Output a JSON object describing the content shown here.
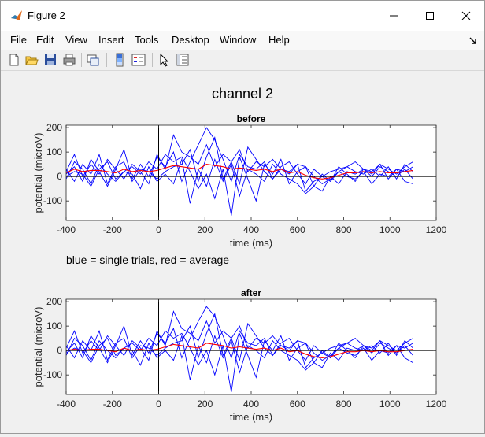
{
  "window": {
    "title": "Figure 2"
  },
  "menu": [
    "File",
    "Edit",
    "View",
    "Insert",
    "Tools",
    "Desktop",
    "Window",
    "Help"
  ],
  "toolbar": [
    {
      "icon": "new-figure-icon"
    },
    {
      "icon": "open-file-icon"
    },
    {
      "icon": "save-icon"
    },
    {
      "icon": "print-icon"
    },
    {
      "icon": "link-plot-icon"
    },
    {
      "icon": "insert-colorbar-icon"
    },
    {
      "icon": "insert-legend-icon"
    },
    {
      "icon": "edit-plot-arrow-icon"
    },
    {
      "icon": "property-inspector-icon"
    }
  ],
  "figure": {
    "suptitle": "channel 2",
    "note": "blue = single trials, red = average"
  },
  "colors": {
    "single_trial": "#0000ff",
    "average": "#ff0000",
    "axis": "#000000"
  },
  "chart_data": [
    {
      "type": "line",
      "title": "before",
      "xlabel": "time (ms)",
      "ylabel": "potential (microV)",
      "xlim": [
        -400,
        1200
      ],
      "ylim": [
        -180,
        210
      ],
      "xticks": [
        -400,
        -200,
        0,
        200,
        400,
        600,
        800,
        1000,
        1200
      ],
      "yticks": [
        -100,
        0,
        100,
        200
      ],
      "x_range_of_data": [
        -400,
        1100
      ],
      "series": [
        {
          "values": [
            10,
            40,
            -20,
            70,
            20,
            -40,
            30,
            110,
            -10,
            50,
            0,
            80,
            40,
            100,
            -20,
            60,
            130,
            200,
            150,
            70,
            -20,
            90,
            40,
            30,
            60,
            -10,
            30,
            20,
            50,
            -60,
            -20,
            0,
            20,
            30,
            40,
            20,
            10,
            30,
            0,
            40,
            -10,
            50,
            20
          ]
        },
        {
          "values": [
            -10,
            60,
            30,
            -30,
            50,
            10,
            -20,
            20,
            40,
            10,
            60,
            30,
            90,
            60,
            80,
            20,
            -50,
            10,
            -90,
            30,
            -160,
            80,
            -10,
            -100,
            50,
            10,
            70,
            -30,
            20,
            40,
            -40,
            -60,
            0,
            -30,
            20,
            10,
            30,
            0,
            40,
            20,
            0,
            30,
            -10
          ]
        },
        {
          "values": [
            30,
            -20,
            50,
            10,
            90,
            -30,
            40,
            60,
            -20,
            30,
            20,
            -10,
            20,
            40,
            50,
            110,
            -20,
            80,
            160,
            -10,
            60,
            -30,
            120,
            70,
            20,
            -10,
            40,
            60,
            10,
            -30,
            30,
            0,
            -20,
            40,
            10,
            -20,
            30,
            10,
            50,
            -10,
            30,
            20,
            40
          ]
        },
        {
          "values": [
            0,
            20,
            10,
            -40,
            30,
            60,
            -10,
            20,
            10,
            -50,
            40,
            -20,
            10,
            -30,
            70,
            -110,
            30,
            -40,
            70,
            -20,
            50,
            -80,
            30,
            10,
            -20,
            50,
            10,
            -10,
            -30,
            -70,
            -40,
            10,
            -20,
            20,
            0,
            -10,
            20,
            -30,
            10,
            0,
            30,
            -20,
            -30
          ]
        },
        {
          "values": [
            20,
            90,
            0,
            50,
            10,
            70,
            30,
            -10,
            50,
            20,
            -30,
            90,
            30,
            170,
            100,
            80,
            50,
            130,
            40,
            90,
            60,
            110,
            20,
            60,
            40,
            70,
            30,
            10,
            50,
            40,
            0,
            -30,
            -10,
            20,
            40,
            60,
            30,
            20,
            50,
            30,
            10,
            40,
            60
          ]
        }
      ],
      "average": [
        15,
        30,
        20,
        25,
        25,
        20,
        15,
        30,
        20,
        25,
        20,
        25,
        35,
        45,
        40,
        35,
        30,
        50,
        45,
        40,
        30,
        35,
        30,
        25,
        30,
        20,
        30,
        15,
        20,
        5,
        -5,
        -10,
        -5,
        5,
        15,
        15,
        20,
        15,
        20,
        15,
        15,
        20,
        25
      ]
    },
    {
      "type": "line",
      "title": "after",
      "xlabel": "time (ms)",
      "ylabel": "potential (microV)",
      "xlim": [
        -400,
        1200
      ],
      "ylim": [
        -180,
        210
      ],
      "xticks": [
        -400,
        -200,
        0,
        200,
        400,
        600,
        800,
        1000,
        1200
      ],
      "yticks": [
        -100,
        0,
        100,
        200
      ],
      "x_range_of_data": [
        -400,
        1100
      ],
      "series": [
        {
          "values": [
            -5,
            30,
            -30,
            60,
            10,
            -50,
            20,
            100,
            -20,
            40,
            -10,
            70,
            30,
            90,
            -30,
            50,
            120,
            180,
            140,
            60,
            -30,
            80,
            30,
            20,
            50,
            -20,
            20,
            10,
            40,
            -70,
            -30,
            -10,
            10,
            20,
            30,
            10,
            0,
            20,
            -10,
            30,
            -20,
            40,
            10
          ]
        },
        {
          "values": [
            -20,
            50,
            20,
            -40,
            40,
            0,
            -30,
            10,
            30,
            0,
            50,
            20,
            80,
            50,
            70,
            10,
            -60,
            0,
            -100,
            20,
            -170,
            70,
            -20,
            -110,
            40,
            0,
            60,
            -40,
            10,
            30,
            -50,
            -70,
            -10,
            -40,
            10,
            0,
            20,
            -10,
            30,
            10,
            -10,
            20,
            -20
          ]
        },
        {
          "values": [
            20,
            -30,
            40,
            0,
            80,
            -40,
            30,
            50,
            -30,
            20,
            10,
            -20,
            10,
            30,
            40,
            100,
            -30,
            70,
            150,
            -20,
            50,
            -40,
            110,
            60,
            10,
            -20,
            30,
            50,
            0,
            -40,
            20,
            -10,
            -30,
            30,
            0,
            -30,
            20,
            0,
            40,
            -20,
            20,
            10,
            30
          ]
        },
        {
          "values": [
            -10,
            10,
            0,
            -50,
            20,
            50,
            -20,
            10,
            0,
            -60,
            30,
            -30,
            0,
            -40,
            60,
            -120,
            20,
            -50,
            60,
            -30,
            40,
            -90,
            20,
            0,
            -30,
            40,
            0,
            -20,
            -40,
            -80,
            -50,
            0,
            -30,
            10,
            -10,
            -20,
            10,
            -40,
            0,
            -10,
            20,
            -30,
            -50
          ]
        },
        {
          "values": [
            10,
            80,
            -10,
            40,
            0,
            60,
            20,
            -20,
            40,
            10,
            -40,
            80,
            20,
            160,
            90,
            70,
            40,
            120,
            30,
            80,
            50,
            100,
            10,
            50,
            30,
            60,
            20,
            0,
            40,
            30,
            -10,
            -40,
            -20,
            10,
            30,
            50,
            20,
            10,
            40,
            20,
            0,
            30,
            50
          ]
        }
      ],
      "average": [
        0,
        5,
        0,
        5,
        5,
        0,
        -5,
        10,
        0,
        5,
        0,
        5,
        15,
        25,
        20,
        15,
        10,
        30,
        25,
        20,
        10,
        15,
        10,
        5,
        10,
        0,
        10,
        -5,
        0,
        -15,
        -25,
        -30,
        -25,
        -15,
        -5,
        -5,
        0,
        -5,
        0,
        -5,
        -5,
        0,
        5
      ]
    }
  ]
}
